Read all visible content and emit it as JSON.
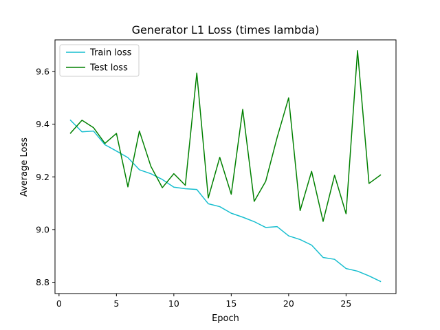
{
  "chart_data": {
    "type": "line",
    "title": "Generator L1 Loss (times lambda)",
    "xlabel": "Epoch",
    "ylabel": "Average Loss",
    "xlim": [
      -0.35,
      29.35
    ],
    "ylim": [
      8.757,
      9.72
    ],
    "xticks": [
      0,
      5,
      10,
      15,
      20,
      25
    ],
    "yticks": [
      8.8,
      9.0,
      9.2,
      9.4,
      9.6
    ],
    "xtick_labels": [
      "0",
      "5",
      "10",
      "15",
      "20",
      "25"
    ],
    "ytick_labels": [
      "8.8",
      "9.0",
      "9.2",
      "9.4",
      "9.6"
    ],
    "grid": false,
    "legend_position": "top-left",
    "x": [
      1,
      2,
      3,
      4,
      5,
      6,
      7,
      8,
      9,
      10,
      11,
      12,
      13,
      14,
      15,
      16,
      17,
      18,
      19,
      20,
      21,
      22,
      23,
      24,
      25,
      26,
      27,
      28
    ],
    "series": [
      {
        "name": "Train loss",
        "color": "#17becf",
        "values": [
          9.415,
          9.371,
          9.374,
          9.322,
          9.298,
          9.273,
          9.227,
          9.212,
          9.19,
          9.161,
          9.155,
          9.152,
          9.098,
          9.087,
          9.062,
          9.047,
          9.03,
          9.008,
          9.011,
          8.976,
          8.962,
          8.941,
          8.894,
          8.887,
          8.852,
          8.842,
          8.824,
          8.803
        ]
      },
      {
        "name": "Test loss",
        "color": "#008000",
        "values": [
          9.366,
          9.415,
          9.387,
          9.327,
          9.365,
          9.162,
          9.374,
          9.24,
          9.159,
          9.212,
          9.168,
          9.594,
          9.12,
          9.274,
          9.134,
          9.456,
          9.107,
          9.183,
          9.35,
          9.5,
          9.072,
          9.221,
          9.031,
          9.206,
          9.06,
          9.679,
          9.175,
          9.207
        ]
      }
    ]
  }
}
